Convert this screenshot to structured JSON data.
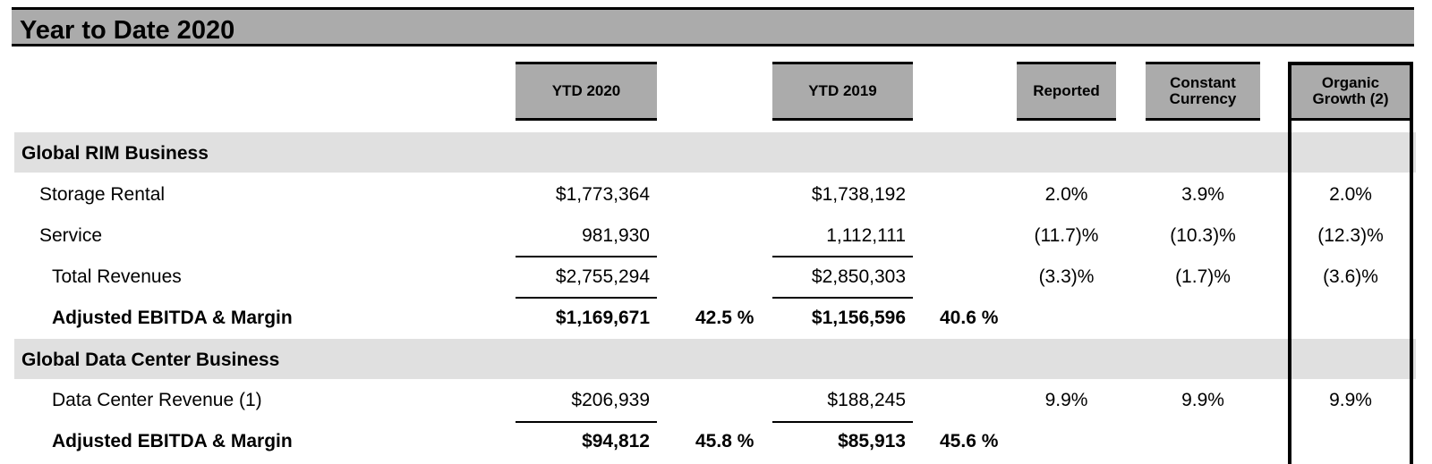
{
  "title": "Year to Date 2020",
  "headers": {
    "ytd2020": "YTD 2020",
    "ytd2019": "YTD 2019",
    "reported": "Reported",
    "constant": "Constant\nCurrency",
    "organic": "Organic\nGrowth (2)"
  },
  "sections": [
    {
      "label": "Global RIM Business",
      "rows": [
        {
          "label": "Storage Rental",
          "ytd2020": "$1,773,364",
          "ytd2019": "$1,738,192",
          "reported": "2.0%",
          "constant": "3.9%",
          "organic": "2.0%"
        },
        {
          "label": "Service",
          "ytd2020": "981,930",
          "ytd2019": "1,112,111",
          "reported": "(11.7)%",
          "constant": "(10.3)%",
          "organic": "(12.3)%"
        },
        {
          "label": "Total Revenues",
          "ytd2020": "$2,755,294",
          "ytd2019": "$2,850,303",
          "reported": "(3.3)%",
          "constant": "(1.7)%",
          "organic": "(3.6)%"
        },
        {
          "label": "Adjusted EBITDA & Margin",
          "ytd2020": "$1,169,671",
          "margin2020": "42.5 %",
          "ytd2019": "$1,156,596",
          "margin2019": "40.6 %"
        }
      ]
    },
    {
      "label": "Global Data Center Business",
      "rows": [
        {
          "label": "Data Center Revenue (1)",
          "ytd2020": "$206,939",
          "ytd2019": "$188,245",
          "reported": "9.9%",
          "constant": "9.9%",
          "organic": "9.9%"
        },
        {
          "label": "Adjusted EBITDA & Margin",
          "ytd2020": "$94,812",
          "margin2020": "45.8 %",
          "ytd2019": "$85,913",
          "margin2019": "45.6 %"
        }
      ]
    }
  ]
}
